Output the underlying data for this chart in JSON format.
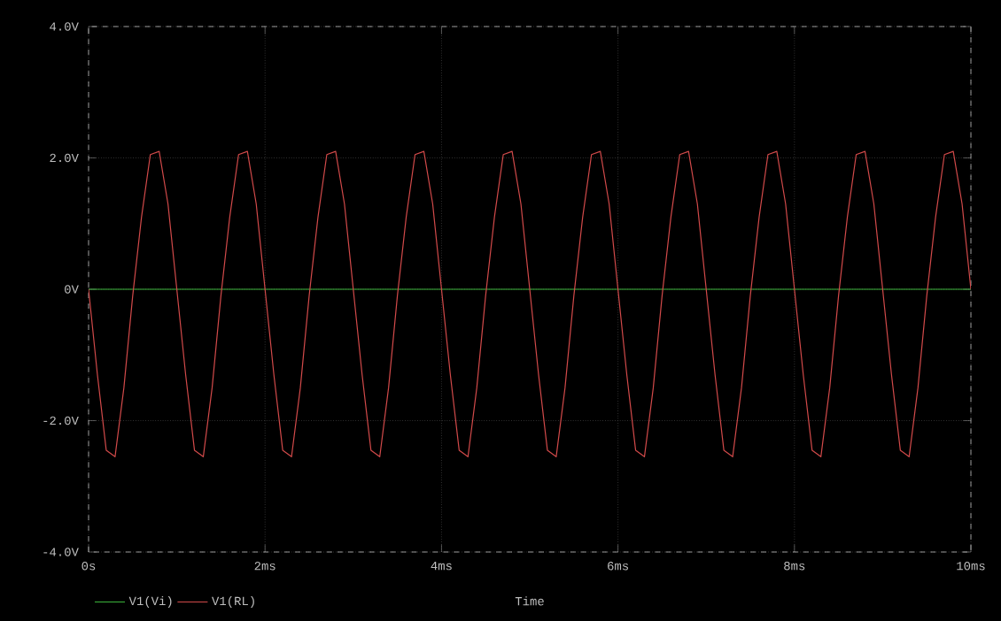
{
  "chart_data": {
    "type": "line",
    "xlabel": "Time",
    "x": [
      0,
      0.1,
      0.2,
      0.3,
      0.4,
      0.5,
      0.6,
      0.7,
      0.8,
      0.9,
      1,
      1.1,
      1.2,
      1.3,
      1.4,
      1.5,
      1.6,
      1.7,
      1.8,
      1.9,
      2,
      2.1,
      2.2,
      2.3,
      2.4,
      2.5,
      2.6,
      2.7,
      2.8,
      2.9,
      3,
      3.1,
      3.2,
      3.3,
      3.4,
      3.5,
      3.6,
      3.7,
      3.8,
      3.9,
      4,
      4.1,
      4.2,
      4.3,
      4.4,
      4.5,
      4.6,
      4.7,
      4.8,
      4.9,
      5,
      5.1,
      5.2,
      5.3,
      5.4,
      5.5,
      5.6,
      5.7,
      5.8,
      5.9,
      6,
      6.1,
      6.2,
      6.3,
      6.4,
      6.5,
      6.6,
      6.7,
      6.8,
      6.9,
      7,
      7.1,
      7.2,
      7.3,
      7.4,
      7.5,
      7.6,
      7.7,
      7.8,
      7.9,
      8,
      8.1,
      8.2,
      8.3,
      8.4,
      8.5,
      8.6,
      8.7,
      8.8,
      8.9,
      9,
      9.1,
      9.2,
      9.3,
      9.4,
      9.5,
      9.6,
      9.7,
      9.8,
      9.9,
      10
    ],
    "series": [
      {
        "name": "V1(Vi)",
        "color": "#3cb43c",
        "x": [
          0,
          10
        ],
        "values": [
          0,
          0
        ]
      },
      {
        "name": "V1(RL)",
        "color": "#d24a4a",
        "values": [
          0,
          -1.3,
          -2.45,
          -2.55,
          -1.5,
          -0.1,
          1.1,
          2.05,
          2.1,
          1.3,
          0,
          -1.3,
          -2.45,
          -2.55,
          -1.5,
          -0.1,
          1.1,
          2.05,
          2.1,
          1.3,
          0,
          -1.3,
          -2.45,
          -2.55,
          -1.5,
          -0.1,
          1.1,
          2.05,
          2.1,
          1.3,
          0,
          -1.3,
          -2.45,
          -2.55,
          -1.5,
          -0.1,
          1.1,
          2.05,
          2.1,
          1.3,
          0,
          -1.3,
          -2.45,
          -2.55,
          -1.5,
          -0.1,
          1.1,
          2.05,
          2.1,
          1.3,
          0,
          -1.3,
          -2.45,
          -2.55,
          -1.5,
          -0.1,
          1.1,
          2.05,
          2.1,
          1.3,
          0,
          -1.3,
          -2.45,
          -2.55,
          -1.5,
          -0.1,
          1.1,
          2.05,
          2.1,
          1.3,
          0,
          -1.3,
          -2.45,
          -2.55,
          -1.5,
          -0.1,
          1.1,
          2.05,
          2.1,
          1.3,
          0,
          -1.3,
          -2.45,
          -2.55,
          -1.5,
          -0.1,
          1.1,
          2.05,
          2.1,
          1.3,
          0,
          -1.3,
          -2.45,
          -2.55,
          -1.5,
          -0.1,
          1.1,
          2.05,
          2.1,
          1.3,
          0
        ]
      }
    ],
    "xlim": [
      0,
      10
    ],
    "xticks": [
      {
        "value": 0,
        "label": "0s"
      },
      {
        "value": 2,
        "label": "2ms"
      },
      {
        "value": 4,
        "label": "4ms"
      },
      {
        "value": 6,
        "label": "6ms"
      },
      {
        "value": 8,
        "label": "8ms"
      },
      {
        "value": 10,
        "label": "10ms"
      }
    ],
    "ylim": [
      -4,
      4
    ],
    "yticks": [
      {
        "value": -4,
        "label": "-4.0V"
      },
      {
        "value": -2,
        "label": "-2.0V"
      },
      {
        "value": 0,
        "label": "0V"
      },
      {
        "value": 2,
        "label": "2.0V"
      },
      {
        "value": 4,
        "label": "4.0V"
      }
    ],
    "grid": true,
    "legend": "bottom left",
    "line_style": "solid"
  }
}
